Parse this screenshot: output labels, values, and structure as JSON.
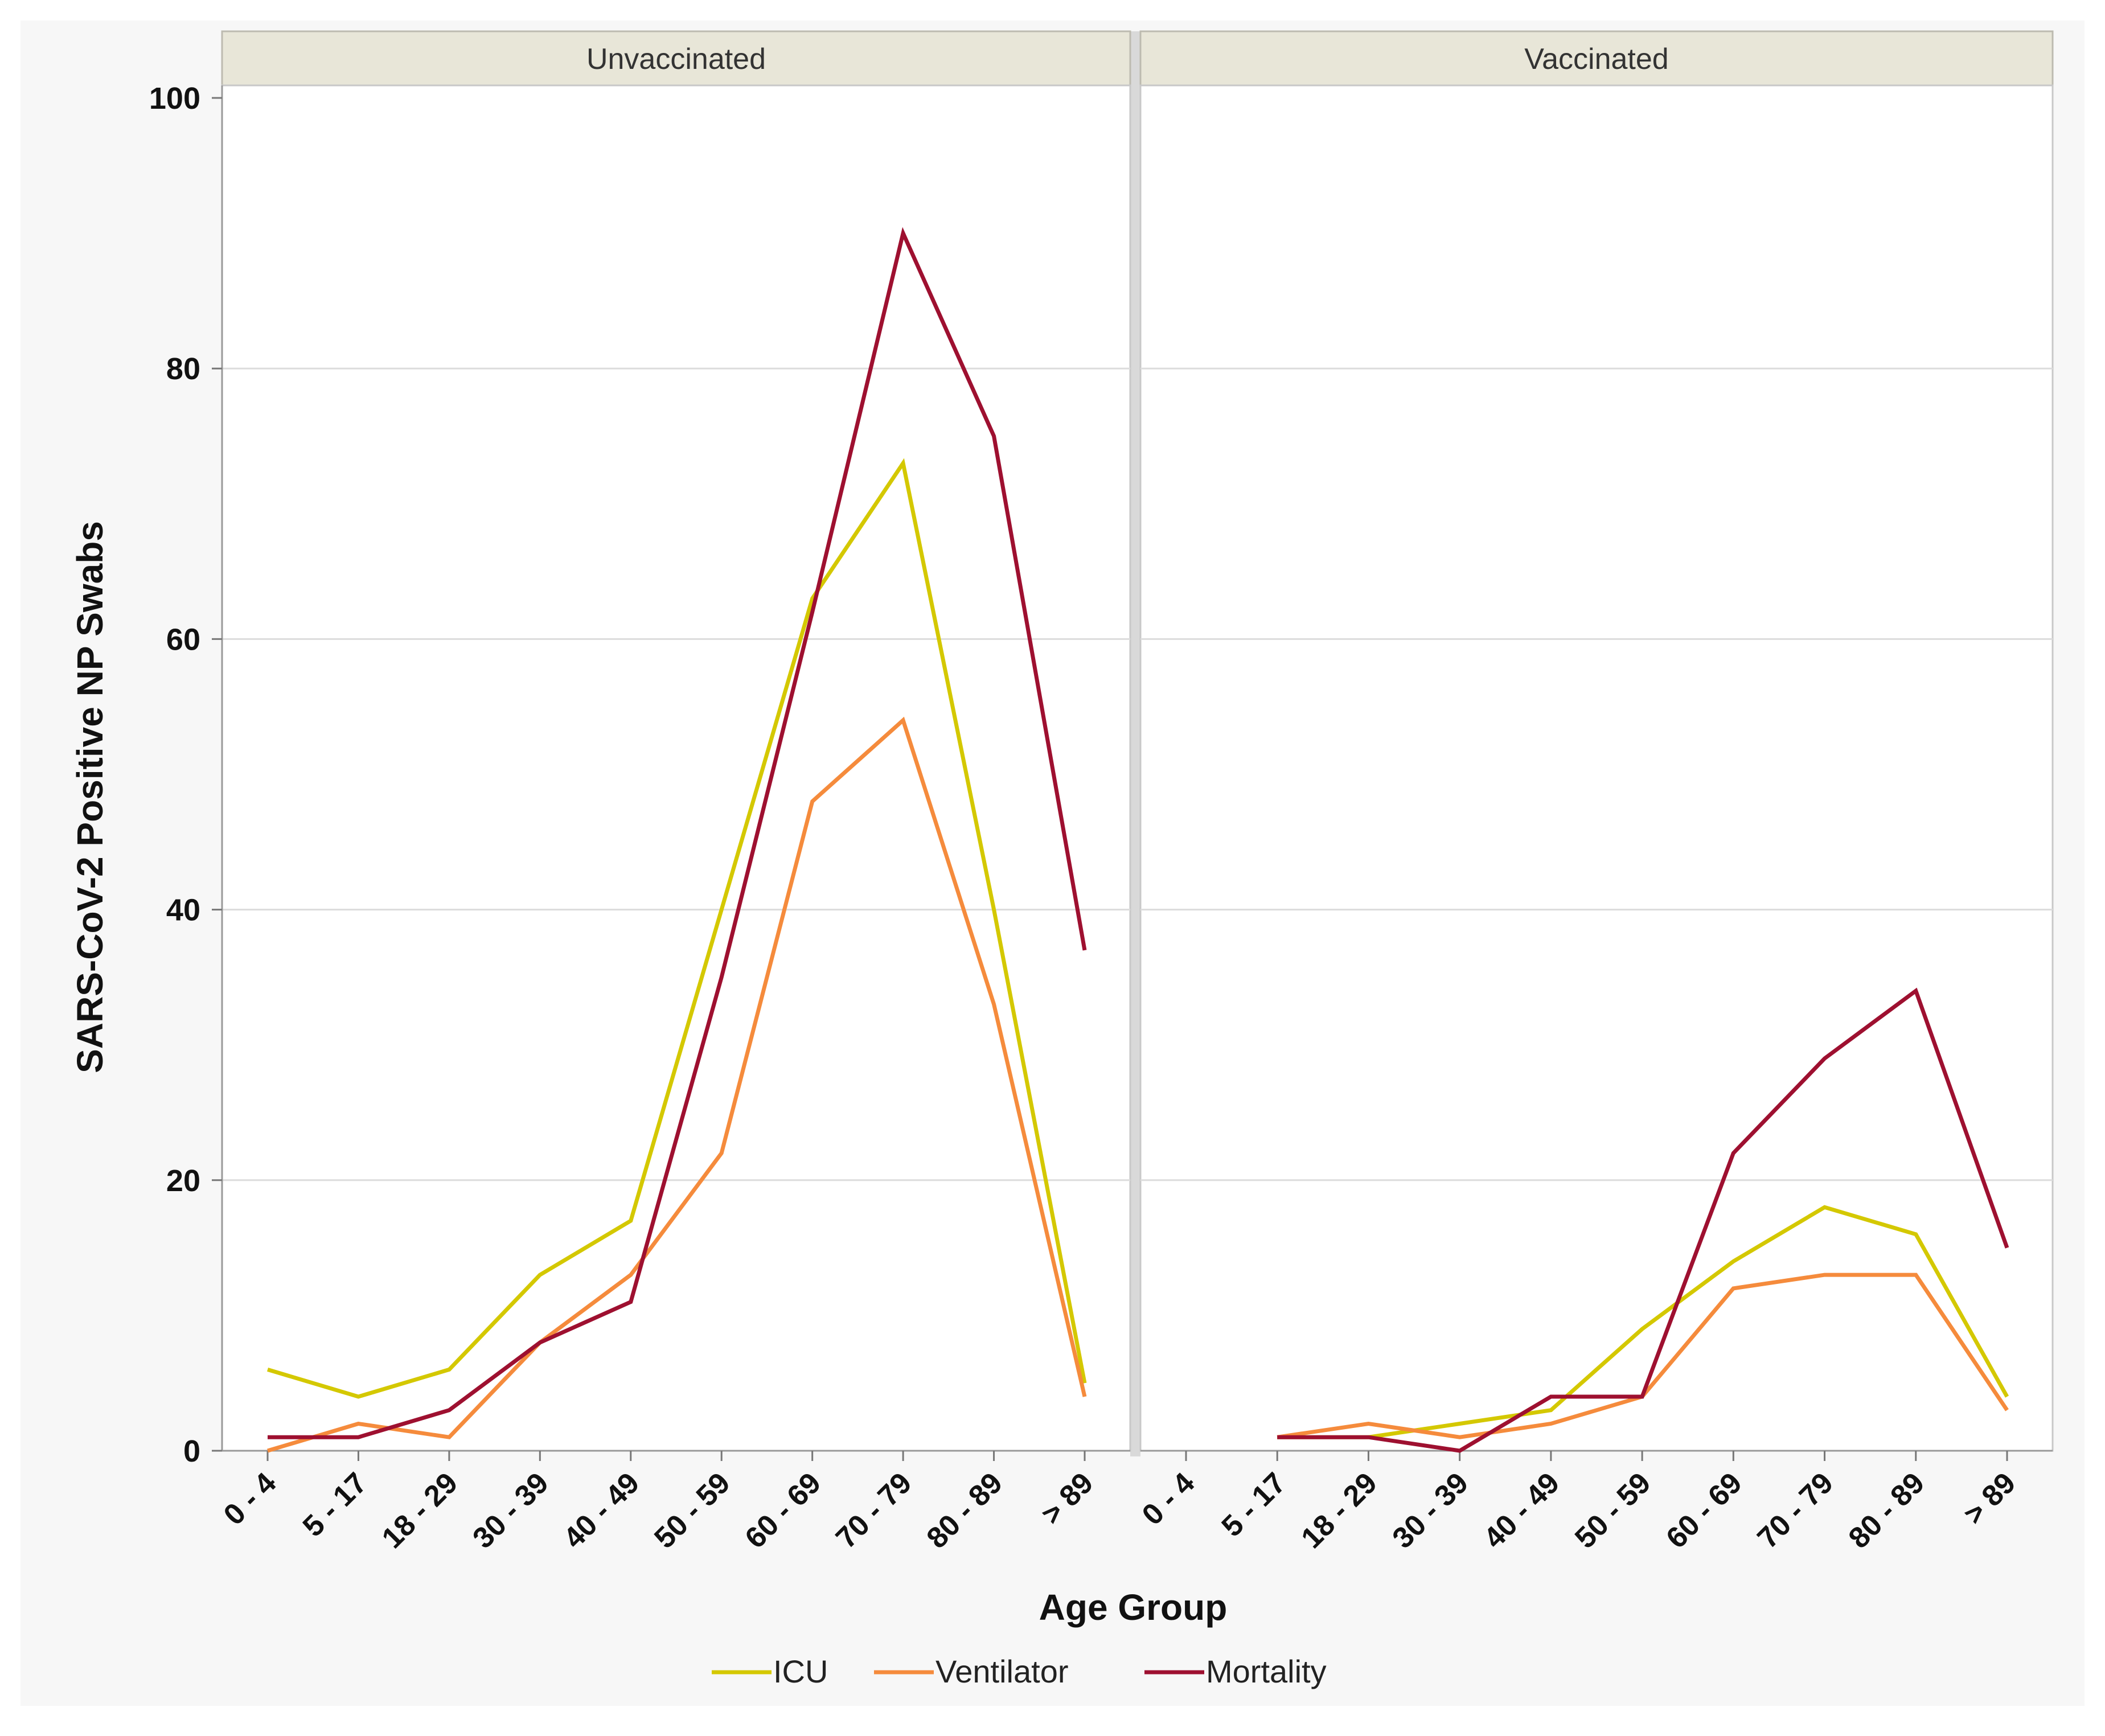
{
  "chart_data": {
    "type": "line",
    "ylabel": "SARS-CoV-2 Positive NP Swabs",
    "xlabel": "Age Group",
    "ylim": [
      0,
      100
    ],
    "yticks": [
      0,
      20,
      40,
      60,
      80,
      100
    ],
    "grid": true,
    "legend_position": "bottom",
    "categories": [
      "0 - 4",
      "5 - 17",
      "18 - 29",
      "30 - 39",
      "40 - 49",
      "50 - 59",
      "60 - 69",
      "70 - 79",
      "80 - 89",
      "> 89"
    ],
    "series_styles": [
      {
        "name": "ICU",
        "color": "#d4c800"
      },
      {
        "name": "Ventilator",
        "color": "#f58b3c"
      },
      {
        "name": "Mortality",
        "color": "#9e1030"
      }
    ],
    "panels": [
      {
        "title": "Unvaccinated",
        "series": [
          {
            "name": "ICU",
            "values": [
              6,
              4,
              6,
              13,
              17,
              40,
              63,
              73,
              40,
              5
            ]
          },
          {
            "name": "Ventilator",
            "values": [
              0,
              2,
              1,
              8,
              13,
              22,
              48,
              54,
              33,
              4
            ]
          },
          {
            "name": "Mortality",
            "values": [
              1,
              1,
              3,
              8,
              11,
              35,
              62,
              90,
              75,
              37
            ]
          }
        ]
      },
      {
        "title": "Vaccinated",
        "series": [
          {
            "name": "ICU",
            "values": [
              null,
              1,
              1,
              2,
              3,
              9,
              14,
              18,
              16,
              4
            ]
          },
          {
            "name": "Ventilator",
            "values": [
              null,
              1,
              2,
              1,
              2,
              4,
              12,
              13,
              13,
              3
            ]
          },
          {
            "name": "Mortality",
            "values": [
              null,
              1,
              1,
              0,
              4,
              4,
              22,
              29,
              34,
              15
            ]
          }
        ]
      }
    ]
  }
}
